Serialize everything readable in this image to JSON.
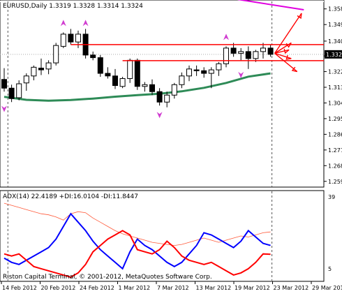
{
  "window": {
    "main_title": "EURUSD,Daily  1.3319 1.3328 1.3314 1.3324",
    "indicator_title": "ADX(14) 22.4189 +DI:16.0104 -DI:11.8447",
    "copyright": "Riston Capital Terminal, © 2001-2012, MetaQuotes Software Corp."
  },
  "chart_data": [
    {
      "type": "candlestick",
      "symbol": "EURUSD",
      "timeframe": "Daily",
      "ohlc_header": {
        "open": 1.3319,
        "high": 1.3328,
        "low": 1.3314,
        "close": 1.3324
      },
      "current_price_label": "1.3324",
      "current_price": 1.3324,
      "y_ticks": [
        1.3585,
        1.3495,
        1.34,
        1.3315,
        1.3225,
        1.3135,
        1.3045,
        1.2955,
        1.2865,
        1.2775,
        1.2685,
        1.2595
      ],
      "ylim": [
        1.257,
        1.362
      ],
      "x_tick_labels": [
        "14 Feb 2012",
        "20 Feb 2012",
        "24 Feb 2012",
        "1 Mar 2012",
        "7 Mar 2012",
        "13 Mar 2012",
        "19 Mar 2012",
        "23 Mar 2012",
        "29 Mar 2012"
      ],
      "candles": [
        {
          "o": 1.318,
          "h": 1.3245,
          "l": 1.311,
          "c": 1.313
        },
        {
          "o": 1.313,
          "h": 1.315,
          "l": 1.305,
          "c": 1.307
        },
        {
          "o": 1.3075,
          "h": 1.3175,
          "l": 1.306,
          "c": 1.3155
        },
        {
          "o": 1.316,
          "h": 1.3215,
          "l": 1.3115,
          "c": 1.32
        },
        {
          "o": 1.32,
          "h": 1.326,
          "l": 1.3175,
          "c": 1.325
        },
        {
          "o": 1.3245,
          "h": 1.33,
          "l": 1.3205,
          "c": 1.3235
        },
        {
          "o": 1.324,
          "h": 1.329,
          "l": 1.321,
          "c": 1.3275
        },
        {
          "o": 1.3275,
          "h": 1.339,
          "l": 1.326,
          "c": 1.3375
        },
        {
          "o": 1.337,
          "h": 1.345,
          "l": 1.336,
          "c": 1.344
        },
        {
          "o": 1.344,
          "h": 1.347,
          "l": 1.338,
          "c": 1.3395
        },
        {
          "o": 1.3395,
          "h": 1.346,
          "l": 1.336,
          "c": 1.344
        },
        {
          "o": 1.344,
          "h": 1.347,
          "l": 1.33,
          "c": 1.332
        },
        {
          "o": 1.332,
          "h": 1.334,
          "l": 1.329,
          "c": 1.3305
        },
        {
          "o": 1.3305,
          "h": 1.332,
          "l": 1.3195,
          "c": 1.3215
        },
        {
          "o": 1.3215,
          "h": 1.325,
          "l": 1.3185,
          "c": 1.32
        },
        {
          "o": 1.32,
          "h": 1.324,
          "l": 1.3125,
          "c": 1.3145
        },
        {
          "o": 1.314,
          "h": 1.3195,
          "l": 1.313,
          "c": 1.3185
        },
        {
          "o": 1.3185,
          "h": 1.33,
          "l": 1.316,
          "c": 1.329
        },
        {
          "o": 1.329,
          "h": 1.33,
          "l": 1.312,
          "c": 1.314
        },
        {
          "o": 1.314,
          "h": 1.3165,
          "l": 1.311,
          "c": 1.315
        },
        {
          "o": 1.315,
          "h": 1.318,
          "l": 1.309,
          "c": 1.311
        },
        {
          "o": 1.311,
          "h": 1.313,
          "l": 1.303,
          "c": 1.305
        },
        {
          "o": 1.305,
          "h": 1.311,
          "l": 1.302,
          "c": 1.309
        },
        {
          "o": 1.309,
          "h": 1.316,
          "l": 1.307,
          "c": 1.315
        },
        {
          "o": 1.315,
          "h": 1.322,
          "l": 1.313,
          "c": 1.32
        },
        {
          "o": 1.32,
          "h": 1.326,
          "l": 1.317,
          "c": 1.324
        },
        {
          "o": 1.3235,
          "h": 1.326,
          "l": 1.32,
          "c": 1.323
        },
        {
          "o": 1.323,
          "h": 1.325,
          "l": 1.319,
          "c": 1.3215
        },
        {
          "o": 1.3215,
          "h": 1.325,
          "l": 1.313,
          "c": 1.3235
        },
        {
          "o": 1.3235,
          "h": 1.328,
          "l": 1.32,
          "c": 1.327
        },
        {
          "o": 1.327,
          "h": 1.337,
          "l": 1.325,
          "c": 1.336
        },
        {
          "o": 1.336,
          "h": 1.339,
          "l": 1.331,
          "c": 1.333
        },
        {
          "o": 1.333,
          "h": 1.336,
          "l": 1.329,
          "c": 1.334
        },
        {
          "o": 1.334,
          "h": 1.337,
          "l": 1.324,
          "c": 1.33
        },
        {
          "o": 1.33,
          "h": 1.335,
          "l": 1.328,
          "c": 1.334
        },
        {
          "o": 1.334,
          "h": 1.339,
          "l": 1.33,
          "c": 1.336
        },
        {
          "o": 1.336,
          "h": 1.338,
          "l": 1.331,
          "c": 1.3324
        }
      ],
      "moving_average": {
        "color": "#2e8b57",
        "points": [
          [
            0,
            1.308
          ],
          [
            3,
            1.3063
          ],
          [
            6,
            1.3058
          ],
          [
            9,
            1.3062
          ],
          [
            12,
            1.307
          ],
          [
            15,
            1.3081
          ],
          [
            18,
            1.309
          ],
          [
            21,
            1.3098
          ],
          [
            24,
            1.3112
          ],
          [
            27,
            1.3132
          ],
          [
            30,
            1.316
          ],
          [
            33,
            1.3196
          ],
          [
            36,
            1.3215
          ]
        ]
      },
      "drawings": {
        "resistance": 1.338,
        "support": 1.3288,
        "projection_from": 1.333,
        "projection_targets": [
          1.356,
          1.339,
          1.335,
          1.33,
          1.3225
        ],
        "magenta_line": [
          [
            31.5,
            1.364
          ],
          [
            40.5,
            1.358
          ]
        ]
      },
      "fractals_up": [
        [
          8,
          1.347
        ],
        [
          11,
          1.347
        ],
        [
          30,
          1.339
        ]
      ],
      "fractals_down": [
        [
          0,
          1.3045
        ],
        [
          21,
          1.301
        ],
        [
          32,
          1.324
        ]
      ],
      "colors": {
        "bull": "#ffffff",
        "bear": "#000000",
        "sr_line": "#ff0000",
        "arrow": "#ff0000",
        "fractal": "#d03cd0",
        "trend_line": "#e000e0"
      }
    },
    {
      "type": "line",
      "indicator": "ADX",
      "period": 14,
      "ylim": [
        0,
        39
      ],
      "y_tick_labels": [
        "39",
        "5"
      ],
      "series": [
        {
          "name": "ADX",
          "color": "#ff5a3a",
          "values": [
            36,
            35,
            34,
            33,
            32,
            31,
            30.5,
            29.5,
            28,
            31,
            32,
            31.5,
            29,
            27,
            25,
            23,
            21.5,
            20.5,
            19.5,
            18.5,
            17.5,
            17,
            16.5,
            16,
            16.5,
            17.5,
            18.5,
            19.5,
            18.5,
            17.5,
            18.5,
            19.5,
            20.5,
            20,
            21,
            22,
            22.4
          ]
        },
        {
          "name": "+DI",
          "color": "#0000ff",
          "values": [
            10,
            8,
            7,
            9,
            11,
            13,
            15,
            19,
            25,
            31,
            27,
            23,
            18,
            14,
            11,
            8,
            5,
            13,
            19,
            16,
            14,
            11,
            8,
            6,
            8,
            12,
            16,
            22,
            21,
            19,
            17,
            15,
            18,
            23,
            20,
            17,
            16
          ]
        },
        {
          "name": "-DI",
          "color": "#ff0000",
          "values": [
            12,
            11,
            12,
            9,
            6,
            5,
            4,
            3,
            2,
            1,
            3,
            7,
            13,
            16,
            19,
            21,
            23,
            21,
            14,
            13,
            12,
            14,
            18,
            15,
            11,
            9,
            8,
            7,
            8,
            6,
            4,
            2,
            3,
            5,
            8,
            12,
            11.8
          ]
        }
      ]
    }
  ]
}
